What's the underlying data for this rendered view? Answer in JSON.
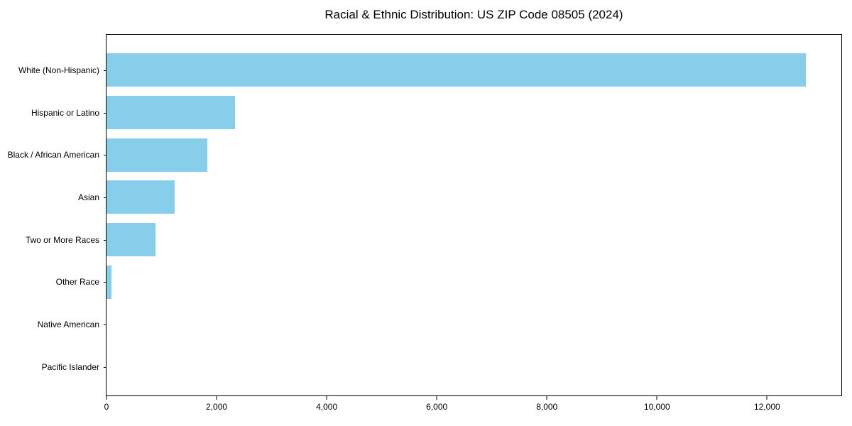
{
  "title": "Racial & Ethnic Distribution: US ZIP Code 08505 (2024)",
  "colors": {
    "bar": "#87CEEB",
    "axis": "#000000",
    "background": "#ffffff",
    "text": "#000000"
  },
  "chart_data": {
    "type": "bar",
    "orientation": "horizontal",
    "title": "Racial & Ethnic Distribution: US ZIP Code 08505 (2024)",
    "categories": [
      "White (Non-Hispanic)",
      "Hispanic or Latino",
      "Black / African American",
      "Asian",
      "Two or More Races",
      "Other Race",
      "Native American",
      "Pacific Islander"
    ],
    "values": [
      12700,
      2340,
      1830,
      1240,
      890,
      90,
      0,
      0
    ],
    "xlabel": "",
    "ylabel": "",
    "xlim": [
      0,
      13350
    ],
    "xticks": [
      0,
      2000,
      4000,
      6000,
      8000,
      10000,
      12000
    ],
    "xtick_labels": [
      "0",
      "2,000",
      "4,000",
      "6,000",
      "8,000",
      "10,000",
      "12,000"
    ],
    "bar_color": "#87CEEB",
    "grid": false,
    "legend": false
  }
}
